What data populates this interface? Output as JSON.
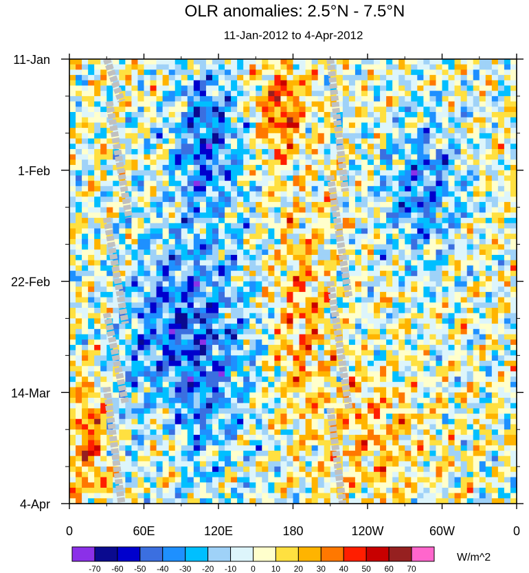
{
  "chart_data": {
    "type": "heatmap",
    "title": "OLR anomalies: 2.5°N - 7.5°N",
    "subtitle": "11-Jan-2012 to 4-Apr-2012",
    "x_axis": {
      "quantity": "longitude",
      "range_deg_east": [
        0,
        360
      ],
      "major_ticks": [
        0,
        60,
        120,
        180,
        240,
        300,
        360
      ],
      "tick_labels": [
        "0",
        "60E",
        "120E",
        "180",
        "120W",
        "60W",
        "0"
      ]
    },
    "y_axis": {
      "quantity": "time",
      "range": [
        "11-Jan-2012",
        "4-Apr-2012"
      ],
      "range_days": [
        0,
        84
      ],
      "major_ticks_days": [
        0,
        21,
        42,
        63,
        84
      ],
      "tick_labels": [
        "11-Jan",
        "1-Feb",
        "22-Feb",
        "14-Mar",
        "4-Apr"
      ],
      "minor_tick_interval_days": 7,
      "direction": "downward"
    },
    "colorbar": {
      "units": "W/m^2",
      "levels": [
        -70,
        -60,
        -50,
        -40,
        -30,
        -20,
        -10,
        0,
        10,
        20,
        30,
        40,
        50,
        60,
        70
      ],
      "colors": [
        "#8b30e8",
        "#0a0a8f",
        "#0000cd",
        "#3b6fe0",
        "#1e90ff",
        "#00bfff",
        "#9fd2f8",
        "#ddf5fb",
        "#ffffcc",
        "#ffe040",
        "#ffb400",
        "#ff7800",
        "#ff1e00",
        "#c80000",
        "#962020",
        "#ff66cc"
      ],
      "orientation": "horizontal",
      "position": "bottom"
    },
    "missing_color": "#c0c0c0",
    "field_features": [
      {
        "description": "positive anomaly band",
        "lon_range": [
          150,
          190
        ],
        "days": [
          0,
          20
        ],
        "value": 40
      },
      {
        "description": "positive anomaly band",
        "lon_range": [
          160,
          210
        ],
        "days": [
          30,
          70
        ],
        "value": 25
      },
      {
        "description": "negative anomaly cluster",
        "lon_range": [
          80,
          140
        ],
        "days": [
          0,
          30
        ],
        "value": -40
      },
      {
        "description": "negative anomaly cluster",
        "lon_range": [
          40,
          150
        ],
        "days": [
          30,
          80
        ],
        "value": -45
      },
      {
        "description": "positive anomaly",
        "lon_range": [
          0,
          30
        ],
        "days": [
          60,
          84
        ],
        "value": 40
      },
      {
        "description": "positive anomaly",
        "lon_range": [
          60,
          90
        ],
        "days": [
          60,
          84
        ],
        "value": 25
      },
      {
        "description": "negative anomaly",
        "lon_range": [
          250,
          320
        ],
        "days": [
          10,
          40
        ],
        "value": -35
      },
      {
        "description": "positive anomaly",
        "lon_range": [
          200,
          290
        ],
        "days": [
          58,
          84
        ],
        "value": 20
      }
    ]
  }
}
